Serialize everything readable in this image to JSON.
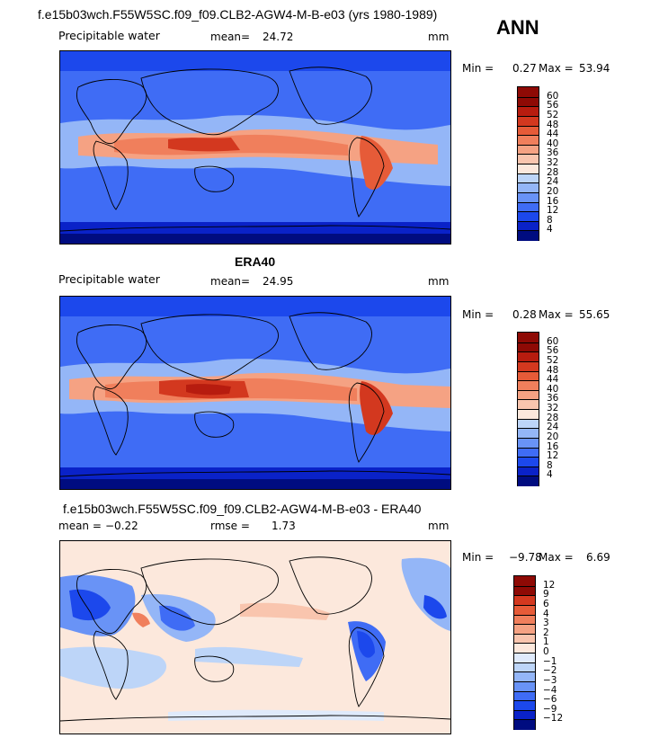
{
  "season": "ANN",
  "colors": {
    "abs": [
      "#000c80",
      "#0a22c8",
      "#1c48ec",
      "#3f6cf5",
      "#6993f6",
      "#94b6f7",
      "#bdd5f8",
      "#fce8dc",
      "#f9c5ae",
      "#f5a283",
      "#f07f5c",
      "#e65b38",
      "#d3381f",
      "#b71c0f",
      "#8e0a05"
    ],
    "diff": [
      "#000c80",
      "#0a22c8",
      "#1c48ec",
      "#3f6cf5",
      "#6993f6",
      "#94b6f7",
      "#bdd5f8",
      "#dfeafb",
      "#fce8dc",
      "#f9c5ae",
      "#f5a283",
      "#f07f5c",
      "#e65b38",
      "#d3381f",
      "#8e0a05"
    ]
  },
  "panels": [
    {
      "id": "model",
      "title": "f.e15b03wch.F55W5SC.f09_f09.CLB2-AGW4-M-B-e03 (yrs 1980-1989)",
      "variable": "Precipitable water",
      "mean_label": "mean=",
      "mean_value": "24.72",
      "extra_label": "",
      "extra_value": "",
      "units": "mm",
      "min_label": "Min =",
      "min_value": "0.27",
      "max_label": "Max =",
      "max_value": "53.94",
      "colorbar_ticks": [
        "4",
        "8",
        "12",
        "16",
        "20",
        "24",
        "28",
        "32",
        "36",
        "40",
        "44",
        "48",
        "52",
        "56",
        "60"
      ],
      "palette": "abs"
    },
    {
      "id": "obs",
      "title": "ERA40",
      "variable": "Precipitable water",
      "mean_label": "mean=",
      "mean_value": "24.95",
      "extra_label": "",
      "extra_value": "",
      "units": "mm",
      "min_label": "Min =",
      "min_value": "0.28",
      "max_label": "Max =",
      "max_value": "55.65",
      "colorbar_ticks": [
        "4",
        "8",
        "12",
        "16",
        "20",
        "24",
        "28",
        "32",
        "36",
        "40",
        "44",
        "48",
        "52",
        "56",
        "60"
      ],
      "palette": "abs"
    },
    {
      "id": "diff",
      "title": "f.e15b03wch.F55W5SC.f09_f09.CLB2-AGW4-M-B-e03 - ERA40",
      "variable": "",
      "mean_label": "mean =",
      "mean_value": "−0.22",
      "extra_label": "rmse =",
      "extra_value": "1.73",
      "units": "mm",
      "min_label": "Min =",
      "min_value": "−9.78",
      "max_label": "Max =",
      "max_value": "6.69",
      "colorbar_ticks": [
        "−12",
        "−9",
        "−6",
        "−4",
        "−3",
        "−2",
        "−1",
        "0",
        "1",
        "2",
        "3",
        "4",
        "6",
        "9",
        "12"
      ],
      "palette": "diff"
    }
  ]
}
